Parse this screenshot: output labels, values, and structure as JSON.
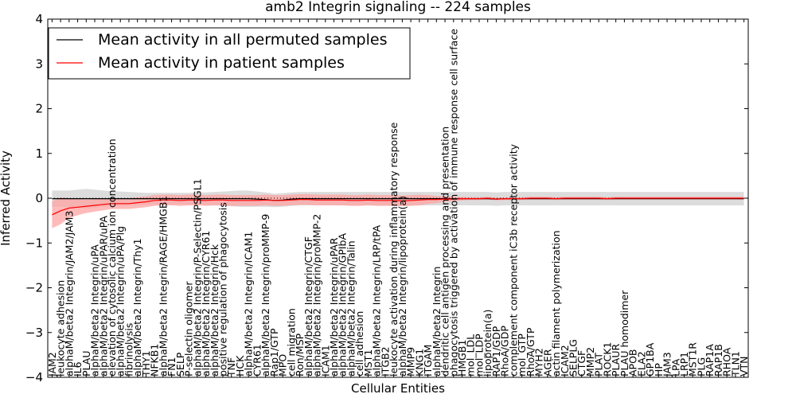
{
  "chart_data": {
    "type": "line",
    "title": "amb2 Integrin signaling -- 224 samples",
    "xlabel": "Cellular Entities",
    "ylabel": "Inferred Activity",
    "ylim": [
      -4,
      4
    ],
    "yticks": [
      -4,
      -3,
      -2,
      -1,
      0,
      1,
      2,
      3,
      4
    ],
    "ytick_labels": [
      "−4",
      "−3",
      "−2",
      "−1",
      "0",
      "1",
      "2",
      "3",
      "4"
    ],
    "grid": false,
    "legend_position": "top-left",
    "categories": [
      "JAM2",
      "leukocyte adhesion",
      "alphaM/beta2 Integrin/JAM2/JAM3",
      "IL6",
      "PLAU",
      "alphaM/beta2 Integrin/uPA",
      "alphaM/beta2 Integrin/uPAR/uPA",
      "elevation of cytosolic calcium ion concentration",
      "alphaM/beta2 Integrin/uPA/Plg",
      "fibrinolysis",
      "alphaM/beta2 Integrin/Thy1",
      "THY1",
      "NFKB1",
      "alphaM/beta2 Integrin/RAGE/HMGB1",
      "FN1",
      "SELP",
      "P-selectin oligomer",
      "alphaM/beta2 Integrin/P-Selectin/PSGL1",
      "alphaM/beta2 Integrin/CYR61",
      "alphaM/beta2 Integrin/Hck",
      "positive regulation of phagocytosis",
      "TNF",
      "HCK",
      "alphaM/beta2 Integrin/ICAM1",
      "CYR61",
      "alphaM/beta2 Integrin/proMMP-9",
      "Rap1/GTP",
      "MPO",
      "cell migration",
      "Ron/MSP",
      "alphaM/beta2 Integrin/CTGF",
      "alphaM/beta2 Integrin/proMMP-2",
      "ICAM1",
      "alphaM/beta2 Integrin/uPAR",
      "alphaM/beta2 Integrin/GPIbA",
      "alphaM/beta2 Integrin/Talin",
      "cell adhesion",
      "MST1",
      "alphaM/beta2 Integrin/LRP/tPA",
      "ITGB2",
      "leukocyte activation during inflammatory response",
      "alphaM/beta2 Integrin/lipoprotein(a)",
      "MMP9",
      "KNG1",
      "ITGAM",
      "alphaM/beta2 Integrin",
      "dendritic cell antigen processing and presentation",
      "phagocytosis triggered by activation of immune response cell surface",
      "HMGB1",
      "mol_LDL",
      "mol_LDP",
      "lipoprotein(a)",
      "RAP1/GDP",
      "RhoA/GDP",
      "complement component iC3b receptor activity",
      "mol_GTP",
      "RhoA/GTP",
      "MYH2",
      "AGER",
      "actin filament polymerization",
      "ICAM2",
      "SELPLG",
      "CTGF",
      "MMP2",
      "PLAT",
      "ROCK1",
      "PLAUR",
      "PLAU homodimer",
      "APOB",
      "ELA2",
      "GP1BA",
      "HP",
      "JAM3",
      "LPA",
      "LRP1",
      "MST1R",
      "PLG",
      "RAP1A",
      "RAP1B",
      "RHOA",
      "TLN1",
      "VTN"
    ],
    "series": [
      {
        "name": "Mean activity in all permuted samples",
        "color": "#000000",
        "band_color": "#bfbfbf",
        "values": [
          -0.01,
          -0.01,
          -0.01,
          -0.01,
          -0.01,
          -0.01,
          -0.01,
          -0.01,
          -0.01,
          -0.01,
          -0.01,
          -0.01,
          -0.01,
          -0.01,
          -0.01,
          -0.01,
          -0.01,
          -0.01,
          -0.01,
          -0.01,
          -0.01,
          -0.01,
          -0.01,
          -0.01,
          -0.02,
          -0.03,
          -0.05,
          -0.04,
          -0.02,
          -0.01,
          -0.01,
          -0.01,
          -0.01,
          -0.01,
          -0.01,
          -0.01,
          -0.01,
          -0.01,
          -0.01,
          -0.01,
          -0.01,
          -0.01,
          -0.01,
          -0.01,
          -0.01,
          -0.01,
          -0.01,
          -0.01,
          -0.01,
          -0.01,
          -0.01,
          -0.01,
          -0.02,
          -0.01,
          -0.01,
          -0.01,
          -0.01,
          -0.01,
          -0.01,
          -0.01,
          -0.01,
          -0.01,
          -0.01,
          -0.01,
          -0.01,
          -0.01,
          -0.01,
          -0.01,
          -0.01,
          -0.01,
          -0.01,
          -0.01,
          -0.01,
          -0.01,
          -0.01,
          -0.01,
          -0.01,
          -0.01,
          -0.01,
          -0.01,
          -0.01,
          -0.01
        ],
        "sd": [
          0.18,
          0.18,
          0.18,
          0.2,
          0.22,
          0.2,
          0.18,
          0.17,
          0.16,
          0.15,
          0.14,
          0.13,
          0.13,
          0.13,
          0.13,
          0.13,
          0.13,
          0.14,
          0.14,
          0.15,
          0.16,
          0.17,
          0.18,
          0.18,
          0.17,
          0.16,
          0.15,
          0.15,
          0.15,
          0.15,
          0.15,
          0.15,
          0.15,
          0.15,
          0.15,
          0.15,
          0.15,
          0.15,
          0.15,
          0.15,
          0.15,
          0.15,
          0.15,
          0.15,
          0.15,
          0.15,
          0.15,
          0.15,
          0.15,
          0.15,
          0.15,
          0.15,
          0.15,
          0.15,
          0.15,
          0.15,
          0.15,
          0.15,
          0.15,
          0.15,
          0.15,
          0.15,
          0.15,
          0.15,
          0.15,
          0.15,
          0.15,
          0.15,
          0.15,
          0.15,
          0.15,
          0.15,
          0.15,
          0.15,
          0.15,
          0.15,
          0.15,
          0.15,
          0.15,
          0.15,
          0.15,
          0.15
        ]
      },
      {
        "name": "Mean activity in patient samples",
        "color": "#ff0000",
        "band_color": "#ffa3a3",
        "values": [
          -0.37,
          -0.28,
          -0.22,
          -0.2,
          -0.18,
          -0.16,
          -0.14,
          -0.12,
          -0.12,
          -0.12,
          -0.1,
          -0.08,
          -0.05,
          -0.04,
          -0.04,
          -0.05,
          -0.04,
          -0.04,
          -0.05,
          -0.04,
          -0.04,
          -0.05,
          -0.05,
          -0.05,
          -0.05,
          -0.04,
          -0.05,
          -0.05,
          -0.04,
          -0.03,
          -0.03,
          -0.04,
          -0.04,
          -0.04,
          -0.04,
          -0.05,
          -0.05,
          -0.04,
          -0.05,
          -0.05,
          -0.05,
          -0.06,
          -0.05,
          -0.04,
          -0.03,
          -0.03,
          -0.02,
          -0.02,
          -0.01,
          -0.01,
          -0.01,
          0.0,
          -0.02,
          -0.01,
          -0.01,
          -0.01,
          0.0,
          0.0,
          0.0,
          -0.01,
          0.0,
          0.0,
          0.0,
          0.0,
          0.0,
          -0.01,
          0.0,
          0.0,
          0.0,
          0.0,
          0.0,
          0.0,
          0.0,
          0.0,
          0.0,
          0.0,
          0.0,
          0.0,
          0.0,
          0.0,
          0.0,
          0.0
        ],
        "sd": [
          0.3,
          0.3,
          0.22,
          0.18,
          0.15,
          0.14,
          0.13,
          0.12,
          0.12,
          0.12,
          0.12,
          0.12,
          0.12,
          0.12,
          0.12,
          0.12,
          0.12,
          0.12,
          0.12,
          0.12,
          0.12,
          0.12,
          0.12,
          0.12,
          0.12,
          0.12,
          0.12,
          0.12,
          0.12,
          0.12,
          0.12,
          0.12,
          0.12,
          0.12,
          0.12,
          0.12,
          0.12,
          0.12,
          0.12,
          0.12,
          0.12,
          0.12,
          0.12,
          0.12,
          0.1,
          0.08,
          0.06,
          0.05,
          0.04,
          0.03,
          0.03,
          0.03,
          0.03,
          0.03,
          0.03,
          0.03,
          0.03,
          0.03,
          0.03,
          0.03,
          0.03,
          0.03,
          0.03,
          0.03,
          0.03,
          0.03,
          0.03,
          0.03,
          0.03,
          0.03,
          0.03,
          0.03,
          0.03,
          0.03,
          0.03,
          0.03,
          0.03,
          0.03,
          0.03,
          0.03,
          0.03,
          0.03
        ]
      }
    ]
  }
}
